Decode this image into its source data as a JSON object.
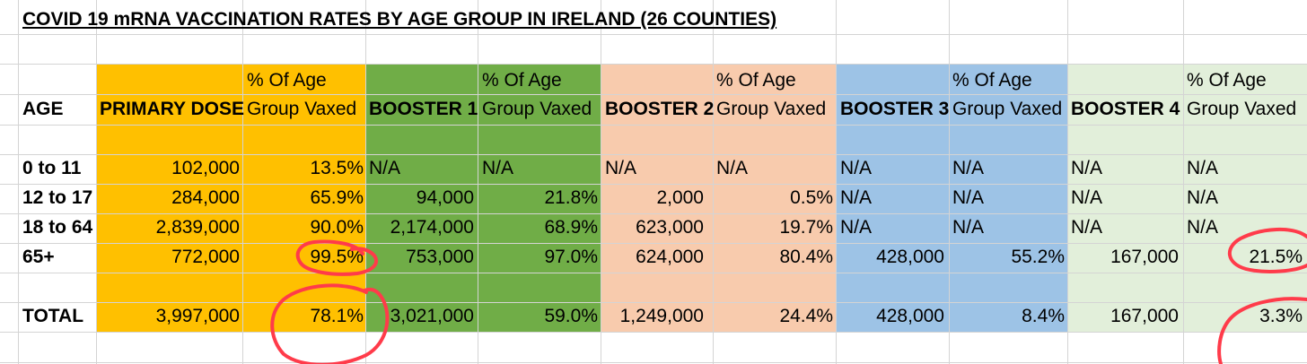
{
  "title": "COVID 19 mRNA VACCINATION RATES BY AGE GROUP IN IRELAND (26 COUNTIES)",
  "header": {
    "age": "AGE",
    "pct_line1": "% Of Age",
    "pct_line2": "Group Vaxed",
    "primary": "PRIMARY DOSE",
    "booster1": "BOOSTER 1",
    "booster2": "BOOSTER 2",
    "booster3": "BOOSTER 3",
    "booster4": "BOOSTER 4"
  },
  "colors": {
    "primary": "#ffc000",
    "booster1": "#70ad47",
    "booster2": "#f8cbad",
    "booster3": "#9dc3e6",
    "booster4": "#e2efda",
    "annotation": "#ff3b4a"
  },
  "rows": [
    {
      "age": "0 to 11",
      "primary": "102,000",
      "primary_pct": "13.5%",
      "b1": "N/A",
      "b1_pct": "N/A",
      "b2": "N/A",
      "b2_pct": "N/A",
      "b3": "N/A",
      "b3_pct": "N/A",
      "b4": "N/A",
      "b4_pct": "N/A"
    },
    {
      "age": "12 to 17",
      "primary": "284,000",
      "primary_pct": "65.9%",
      "b1": "94,000",
      "b1_pct": "21.8%",
      "b2": "2,000",
      "b2_pct": "0.5%",
      "b3": "N/A",
      "b3_pct": "N/A",
      "b4": "N/A",
      "b4_pct": "N/A"
    },
    {
      "age": "18 to 64",
      "primary": "2,839,000",
      "primary_pct": "90.0%",
      "b1": "2,174,000",
      "b1_pct": "68.9%",
      "b2": "623,000",
      "b2_pct": "19.7%",
      "b3": "N/A",
      "b3_pct": "N/A",
      "b4": "N/A",
      "b4_pct": "N/A"
    },
    {
      "age": "65+",
      "primary": "772,000",
      "primary_pct": "99.5%",
      "b1": "753,000",
      "b1_pct": "97.0%",
      "b2": "624,000",
      "b2_pct": "80.4%",
      "b3": "428,000",
      "b3_pct": "55.2%",
      "b4": "167,000",
      "b4_pct": "21.5%"
    }
  ],
  "total": {
    "age": "TOTAL",
    "primary": "3,997,000",
    "primary_pct": "78.1%",
    "b1": "3,021,000",
    "b1_pct": "59.0%",
    "b2": "1,249,000",
    "b2_pct": "24.4%",
    "b3": "428,000",
    "b3_pct": "8.4%",
    "b4": "167,000",
    "b4_pct": "3.3%"
  }
}
